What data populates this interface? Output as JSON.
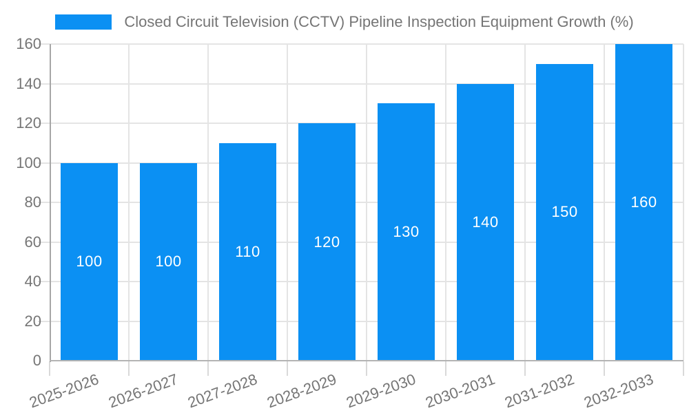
{
  "legend": {
    "label": "Closed Circuit Television (CCTV) Pipeline Inspection Equipment Growth (%)"
  },
  "colors": {
    "bar": "#0b90f3",
    "bar_label": "#ffffff",
    "axis_text": "#757575",
    "grid": "#e4e4e4",
    "y_axis_line": "#a6a6a6",
    "x_axis_line": "#b3b3b3",
    "tick": "#d9d9d9",
    "background": "#ffffff"
  },
  "chart_data": {
    "type": "bar",
    "title": "",
    "xlabel": "",
    "ylabel": "",
    "categories": [
      "2025-2026",
      "2026-2027",
      "2027-2028",
      "2028-2029",
      "2029-2030",
      "2030-2031",
      "2031-2032",
      "2032-2033"
    ],
    "series": [
      {
        "name": "Closed Circuit Television (CCTV) Pipeline Inspection Equipment Growth (%)",
        "values": [
          100,
          100,
          110,
          120,
          130,
          140,
          150,
          160
        ]
      }
    ],
    "bar_labels": [
      "100",
      "100",
      "110",
      "120",
      "130",
      "140",
      "150",
      "160"
    ],
    "ylim": [
      0,
      160
    ],
    "yticks": [
      0,
      20,
      40,
      60,
      80,
      100,
      120,
      140,
      160
    ],
    "grid": true,
    "legend_position": "top",
    "bar_label_position": "center-inside"
  }
}
